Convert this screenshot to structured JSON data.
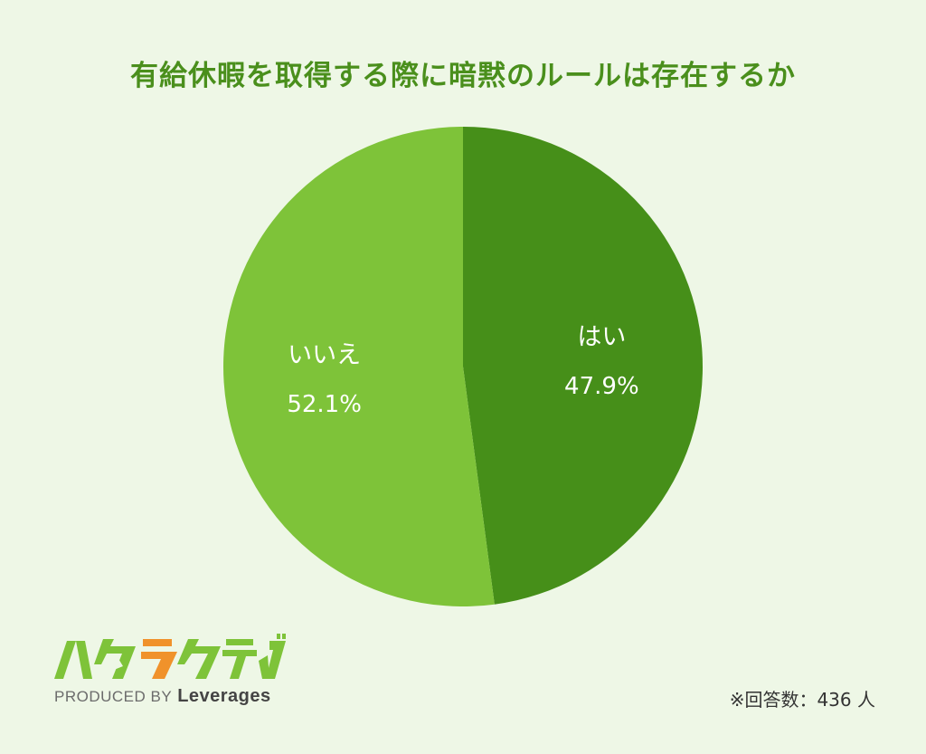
{
  "chart_data": {
    "type": "pie",
    "title": "有給休暇を取得する際に暗黙のルールは存在するか",
    "slices": [
      {
        "label": "はい",
        "value": 47.9,
        "value_label": "47.9%",
        "color": "#468f19"
      },
      {
        "label": "いいえ",
        "value": 52.1,
        "value_label": "52.1%",
        "color": "#7ec339"
      }
    ],
    "start": "top",
    "direction": "clockwise"
  },
  "footer": {
    "logo_text": "ハタラクティブ",
    "produced_by": "PRODUCED BY",
    "brand": "Leverages",
    "respondents": "※回答数：436 人"
  },
  "colors": {
    "background": "#eef7e6",
    "title": "#4a8f1c",
    "logo_green": "#7ec339",
    "logo_orange": "#f0922b"
  }
}
